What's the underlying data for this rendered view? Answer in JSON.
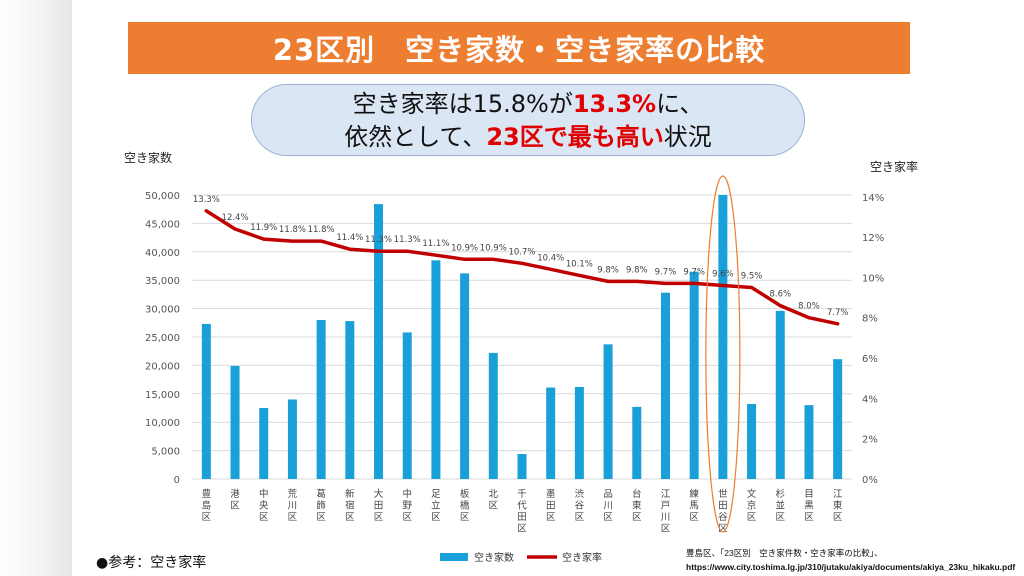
{
  "title": "23区別　空き家数・空き家率の比較",
  "callout": {
    "line1_a": "空き家率は15.8%が",
    "line1_b": "13.3%",
    "line1_c": "に、",
    "line2_a": "依然として、",
    "line2_b": "23区で最も高い",
    "line2_c": "状況"
  },
  "footer": {
    "reference": "●参考：空き家率",
    "source_line1": "豊島区、「23区別　空き家件数・空き家率の比較」、",
    "source_line2": "https://www.city.toshima.lg.jp/310/jutaku/akiya/documents/akiya_23ku_hikaku.pdf"
  },
  "chart_data": {
    "type": "bar+line",
    "categories": [
      "豊島区",
      "港区",
      "中央区",
      "荒川区",
      "葛飾区",
      "新宿区",
      "大田区",
      "中野区",
      "足立区",
      "板橋区",
      "北区",
      "千代田区",
      "墨田区",
      "渋谷区",
      "品川区",
      "台東区",
      "江戸川区",
      "練馬区",
      "世田谷区",
      "文京区",
      "杉並区",
      "目黒区",
      "江東区"
    ],
    "series": [
      {
        "name": "空き家数",
        "type": "bar",
        "color": "#19a0d8",
        "axis": "left",
        "values": [
          27300,
          19900,
          12500,
          14000,
          28000,
          27800,
          48400,
          25800,
          38500,
          36200,
          22200,
          4400,
          16100,
          16200,
          23700,
          12700,
          32800,
          36500,
          50000,
          13200,
          29600,
          13000,
          21100
        ]
      },
      {
        "name": "空き家率",
        "type": "line",
        "color": "#c00000",
        "axis": "right",
        "values": [
          13.3,
          12.4,
          11.9,
          11.8,
          11.8,
          11.4,
          11.3,
          11.3,
          11.1,
          10.9,
          10.9,
          10.7,
          10.4,
          10.1,
          9.8,
          9.8,
          9.7,
          9.7,
          9.6,
          9.5,
          8.6,
          8.0,
          7.7
        ],
        "labels": [
          "13.3%",
          "12.4%",
          "11.9%",
          "11.8%",
          "11.8%",
          "11.4%",
          "11.3%",
          "11.3%",
          "11.1%",
          "10.9%",
          "10.9%",
          "10.7%",
          "10.4%",
          "10.1%",
          "9.8%",
          "9.8%",
          "9.7%",
          "9.7%",
          "9.6%",
          "9.5%",
          "8.6%",
          "8.0%",
          "7.7%"
        ]
      }
    ],
    "ylabel": "空き家数",
    "y2label": "空き家率",
    "ylim": [
      0,
      50000
    ],
    "y2lim": [
      0,
      15
    ],
    "y_ticks": [
      "0",
      "5,000",
      "10,000",
      "15,000",
      "20,000",
      "25,000",
      "30,000",
      "35,000",
      "40,000",
      "45,000",
      "50,000"
    ],
    "y_tick_values": [
      0,
      5000,
      10000,
      15000,
      20000,
      25000,
      30000,
      35000,
      40000,
      45000,
      50000
    ],
    "y2_ticks": [
      "0%",
      "2%",
      "4%",
      "6%",
      "8%",
      "10%",
      "12%",
      "14%"
    ],
    "y2_tick_values": [
      0,
      2,
      4,
      6,
      8,
      10,
      12,
      14
    ],
    "grid": true,
    "legend_position": "bottom",
    "highlight_category": "世田谷区",
    "highlight_color": "#ed7d31"
  }
}
